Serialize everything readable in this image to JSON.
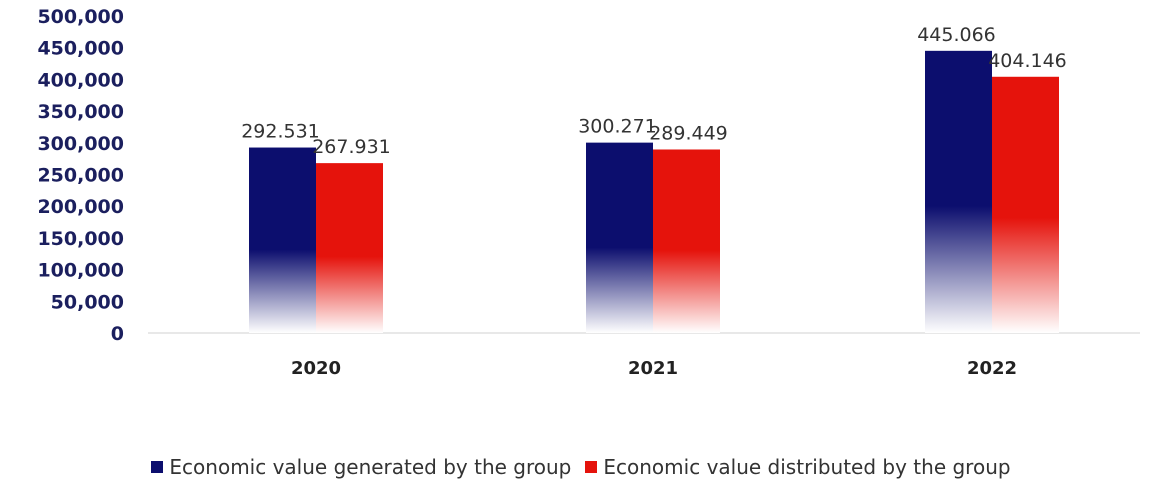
{
  "chart_data": {
    "type": "bar",
    "categories": [
      "2020",
      "2021",
      "2022"
    ],
    "series": [
      {
        "name": "Economic value generated by the group",
        "values": [
          292531,
          300271,
          445066
        ],
        "labels": [
          "292.531",
          "300.271",
          "445.066"
        ],
        "color": "#0c0e6e"
      },
      {
        "name": "Economic value distributed by the group",
        "values": [
          267931,
          289449,
          404146
        ],
        "labels": [
          "267.931",
          "289.449",
          "404.146"
        ],
        "color": "#e5130c"
      }
    ],
    "ylim": [
      0,
      500000
    ],
    "yticks": [
      "0",
      "50,000",
      "100,000",
      "150,000",
      "200,000",
      "250,000",
      "300,000",
      "350,000",
      "400,000",
      "450,000",
      "500,000"
    ],
    "grid": false,
    "legend_position": "bottom"
  }
}
